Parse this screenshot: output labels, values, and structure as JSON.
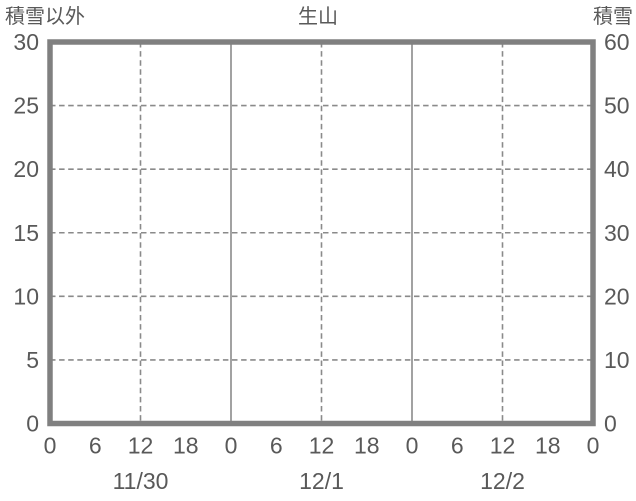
{
  "figure": {
    "left_axis_title": "積雪以外",
    "title": "生山",
    "right_axis_title": "積雪"
  },
  "chart_data": {
    "type": "line",
    "title": "生山",
    "subtitle": "",
    "series": [],
    "note": "empty plot frame, no data series drawn",
    "left_axis": {
      "label": "積雪以外",
      "lim": [
        0,
        30
      ],
      "ticks": [
        0,
        5,
        10,
        15,
        20,
        25,
        30
      ]
    },
    "right_axis": {
      "label": "積雪",
      "lim": [
        0,
        60
      ],
      "ticks": [
        0,
        10,
        20,
        30,
        40,
        50,
        60
      ]
    },
    "x_axis": {
      "unit": "hours",
      "range_hours": [
        0,
        72
      ],
      "hour_ticks": [
        0,
        6,
        12,
        18,
        24,
        30,
        36,
        42,
        48,
        54,
        60,
        66,
        72
      ],
      "hour_tick_labels": [
        "0",
        "6",
        "12",
        "18",
        "0",
        "6",
        "12",
        "18",
        "0",
        "6",
        "12",
        "18",
        "0"
      ],
      "day_labels": [
        "11/30",
        "12/1",
        "12/2"
      ],
      "day_label_center_hours": [
        12,
        36,
        60
      ],
      "solid_gridline_hours": [
        24,
        48
      ],
      "dashed_gridline_hours": [
        12,
        36,
        60
      ]
    },
    "grid": {
      "horizontal_dashed_at": [
        5,
        10,
        15,
        20,
        25
      ],
      "legend": "none"
    },
    "colors": {
      "frame": "#808080",
      "grid": "#8a8a8a",
      "text": "#595959",
      "background": "#ffffff"
    }
  }
}
